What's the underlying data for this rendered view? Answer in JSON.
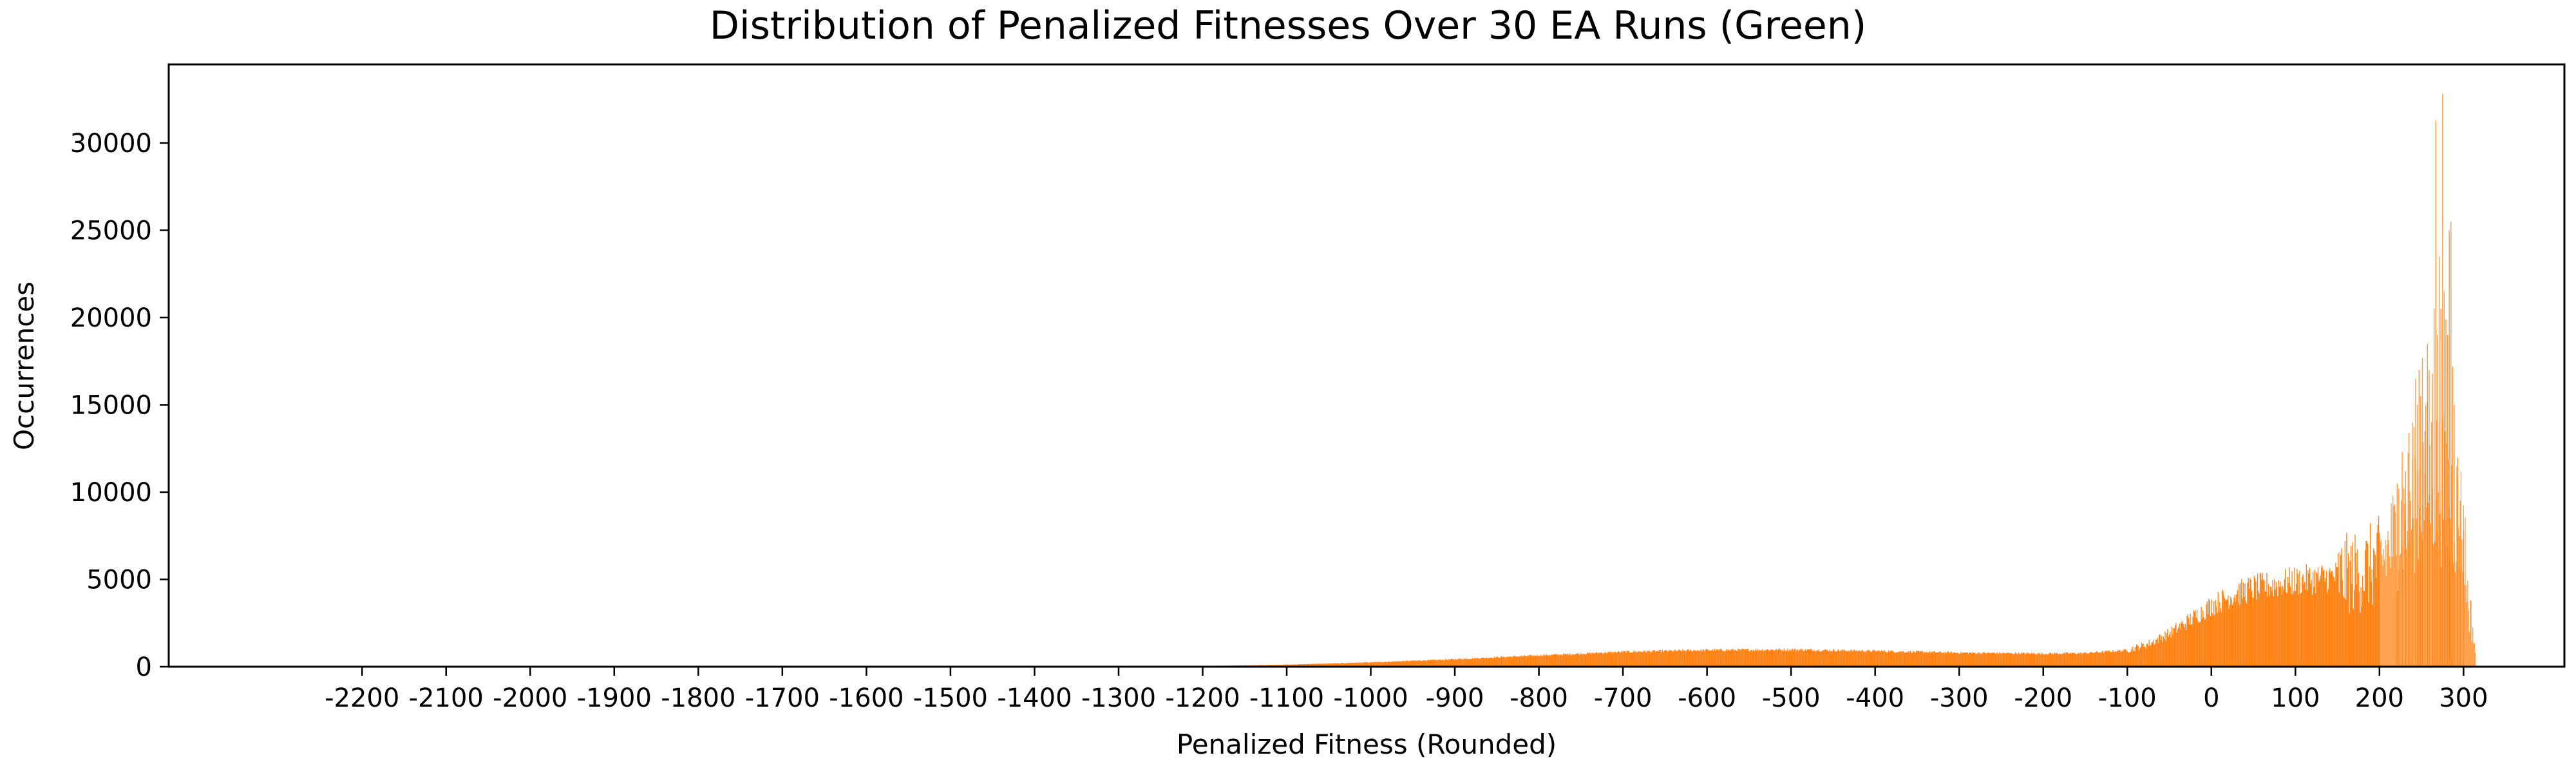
{
  "chart_data": {
    "type": "bar",
    "title": "Distribution of Penalized Fitnesses Over 30 EA Runs (Green)",
    "xlabel": "Penalized Fitness (Rounded)",
    "ylabel": "Occurrences",
    "xlim": [
      -2430,
      420
    ],
    "ylim": [
      0,
      34500
    ],
    "xticks": [
      -2200,
      -2100,
      -2000,
      -1900,
      -1800,
      -1700,
      -1600,
      -1500,
      -1400,
      -1300,
      -1200,
      -1100,
      -1000,
      -900,
      -800,
      -700,
      -600,
      -500,
      -400,
      -300,
      -200,
      -100,
      0,
      100,
      200,
      300
    ],
    "xtick_labels": [
      "-2200",
      "-2100",
      "-2000",
      "-1900",
      "-1800",
      "-1700",
      "-1600",
      "-1500",
      "-1400",
      "-1300",
      "-1200",
      "-1100",
      "-1000",
      "-900",
      "-800",
      "-700",
      "-600",
      "-500",
      "-400",
      "-300",
      "-200",
      "-100",
      "0",
      "100",
      "200",
      "300"
    ],
    "yticks": [
      0,
      5000,
      10000,
      15000,
      20000,
      25000,
      30000
    ],
    "ytick_labels": [
      "0",
      "5000",
      "10000",
      "15000",
      "20000",
      "25000",
      "30000"
    ],
    "bar_color": "#ff7f0e",
    "grid": false,
    "legend": "none",
    "bin_width": 1,
    "envelope_x": [
      -1250,
      -1200,
      -1100,
      -1000,
      -900,
      -800,
      -700,
      -600,
      -500,
      -400,
      -300,
      -200,
      -150,
      -100,
      -75,
      -50,
      -25,
      0,
      25,
      50,
      100,
      150,
      180,
      200,
      220,
      240,
      260,
      280,
      300,
      305,
      310,
      315
    ],
    "envelope_y": [
      0,
      40,
      120,
      250,
      430,
      650,
      850,
      950,
      980,
      900,
      800,
      750,
      780,
      950,
      1300,
      1900,
      2700,
      3500,
      4100,
      4500,
      4900,
      5200,
      5500,
      6000,
      7500,
      9500,
      11000,
      10000,
      8000,
      4000,
      2500,
      500
    ],
    "peaks": [
      {
        "x": 221,
        "y": 10500
      },
      {
        "x": 223,
        "y": 10200
      },
      {
        "x": 227,
        "y": 12300
      },
      {
        "x": 231,
        "y": 11200
      },
      {
        "x": 235,
        "y": 13400
      },
      {
        "x": 239,
        "y": 14000
      },
      {
        "x": 243,
        "y": 16500
      },
      {
        "x": 245,
        "y": 15000
      },
      {
        "x": 247,
        "y": 17000
      },
      {
        "x": 249,
        "y": 15500
      },
      {
        "x": 251,
        "y": 17700
      },
      {
        "x": 254,
        "y": 13500
      },
      {
        "x": 257,
        "y": 18500
      },
      {
        "x": 259,
        "y": 17000
      },
      {
        "x": 263,
        "y": 16800
      },
      {
        "x": 265,
        "y": 20500
      },
      {
        "x": 267,
        "y": 31300
      },
      {
        "x": 269,
        "y": 19000
      },
      {
        "x": 271,
        "y": 23500
      },
      {
        "x": 273,
        "y": 20500
      },
      {
        "x": 275,
        "y": 32800
      },
      {
        "x": 277,
        "y": 21500
      },
      {
        "x": 279,
        "y": 19900
      },
      {
        "x": 281,
        "y": 19000
      },
      {
        "x": 283,
        "y": 25000
      },
      {
        "x": 285,
        "y": 25500
      },
      {
        "x": 287,
        "y": 17200
      },
      {
        "x": 289,
        "y": 15000
      },
      {
        "x": 293,
        "y": 12000
      },
      {
        "x": 296,
        "y": 9500
      },
      {
        "x": 300,
        "y": 7800
      }
    ]
  }
}
